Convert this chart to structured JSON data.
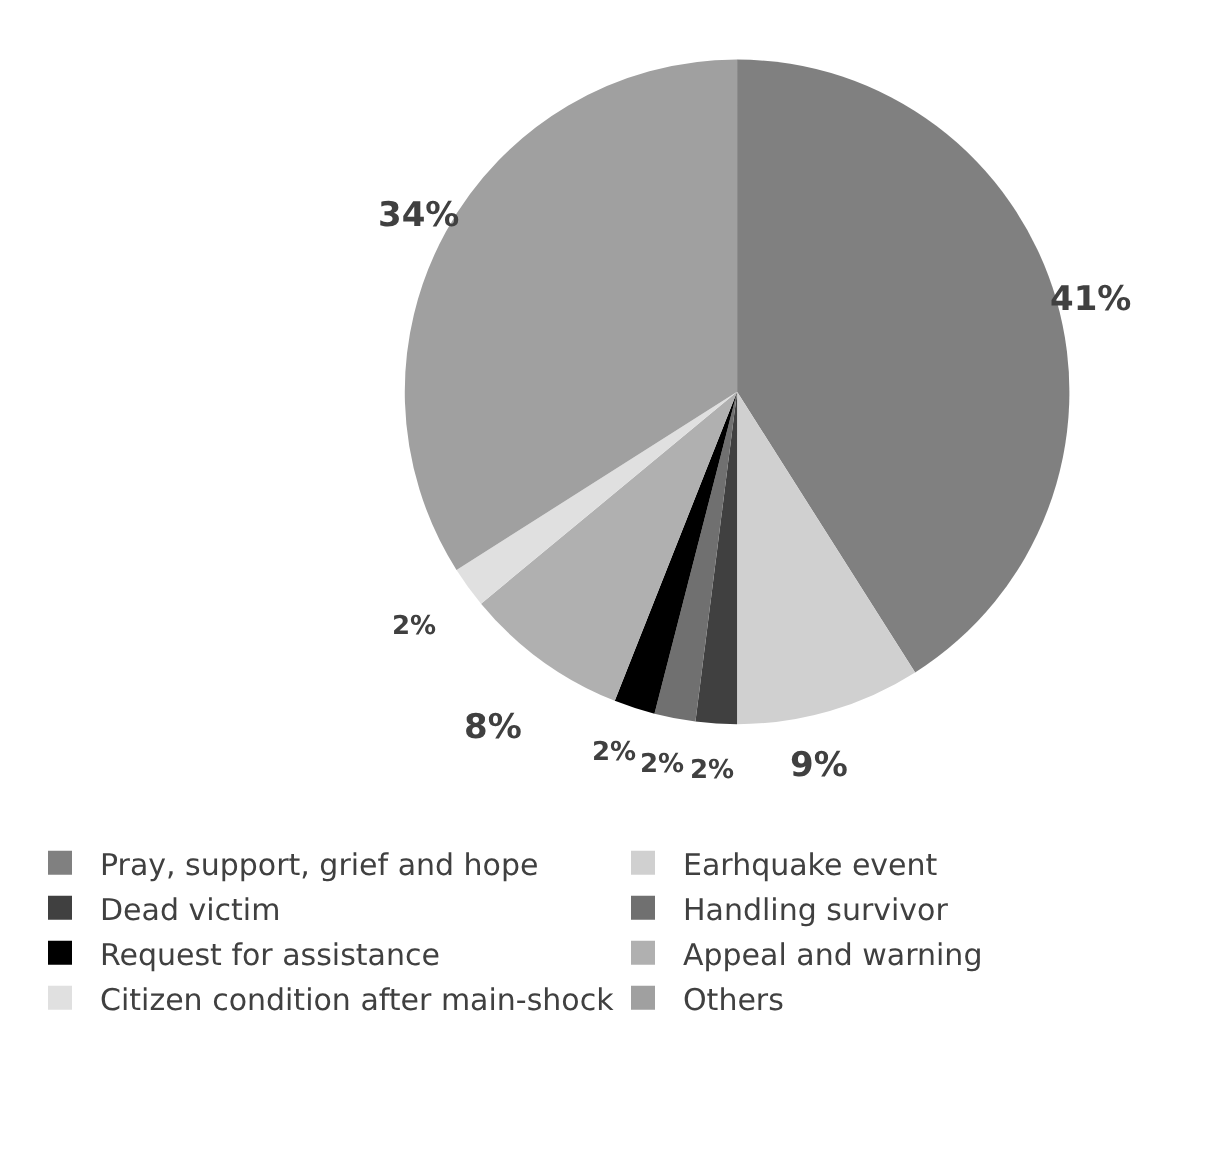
{
  "chart_data": {
    "type": "pie",
    "categories": [
      "Pray, support, grief and hope",
      "Earhquake event",
      "Dead victim",
      "Handling survivor",
      "Request for assistance",
      "Appeal and warning",
      "Citizen condition after main-shock",
      "Others"
    ],
    "values": [
      41,
      9,
      2,
      2,
      2,
      8,
      2,
      34
    ],
    "value_labels": [
      "41%",
      "9%",
      "2%",
      "2%",
      "2%",
      "8%",
      "2%",
      "34%"
    ],
    "colors": [
      "#808080",
      "#d0d0d0",
      "#404040",
      "#707070",
      "#000000",
      "#b0b0b0",
      "#e0e0e0",
      "#a0a0a0"
    ],
    "legend": "bottom"
  }
}
